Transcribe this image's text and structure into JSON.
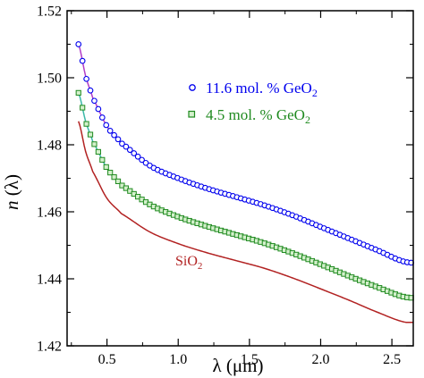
{
  "chart_data": {
    "type": "scatter",
    "xlabel": "λ (μm)",
    "ylabel": "n (λ)",
    "xlim": [
      0.22,
      2.65
    ],
    "ylim": [
      1.42,
      1.52
    ],
    "xticks": [
      0.5,
      1.0,
      1.5,
      2.0,
      2.5
    ],
    "xtick_labels": [
      "0.5",
      "1.0",
      "1.5",
      "2.0",
      "2.5"
    ],
    "yticks": [
      1.42,
      1.44,
      1.46,
      1.48,
      1.5,
      1.52
    ],
    "ytick_labels": [
      "1.42",
      "1.44",
      "1.46",
      "1.48",
      "1.50",
      "1.52"
    ],
    "legend_position": "upper-right",
    "series": [
      {
        "name": "11.6 mol. % GeO2",
        "legend_label": "11.6 mol. % GeO",
        "legend_subscript": "2",
        "marker": "open-circle",
        "color": "#0000ee",
        "fit_color": "#b23cc6",
        "points": [
          [
            0.3,
            1.51
          ],
          [
            0.35,
            1.5005
          ],
          [
            0.4,
            1.494
          ],
          [
            0.5,
            1.4855
          ],
          [
            0.6,
            1.4805
          ],
          [
            0.8,
            1.4738
          ],
          [
            1.0,
            1.47
          ],
          [
            1.2,
            1.467
          ],
          [
            1.4,
            1.4645
          ],
          [
            1.6,
            1.462
          ],
          [
            1.8,
            1.459
          ],
          [
            2.0,
            1.4555
          ],
          [
            2.2,
            1.452
          ],
          [
            2.4,
            1.4485
          ],
          [
            2.6,
            1.445
          ]
        ]
      },
      {
        "name": "4.5 mol. % GeO2",
        "legend_label": "4.5 mol. % GeO",
        "legend_subscript": "2",
        "marker": "open-square",
        "color": "#1f8a1f",
        "fit_color": "#3bb8a8",
        "points": [
          [
            0.3,
            1.4955
          ],
          [
            0.35,
            1.487
          ],
          [
            0.4,
            1.481
          ],
          [
            0.5,
            1.473
          ],
          [
            0.6,
            1.468
          ],
          [
            0.8,
            1.4622
          ],
          [
            1.0,
            1.4585
          ],
          [
            1.2,
            1.4557
          ],
          [
            1.4,
            1.4532
          ],
          [
            1.6,
            1.4507
          ],
          [
            1.8,
            1.4477
          ],
          [
            2.0,
            1.4443
          ],
          [
            2.2,
            1.4408
          ],
          [
            2.4,
            1.4375
          ],
          [
            2.6,
            1.4345
          ]
        ]
      },
      {
        "name": "SiO2",
        "label": "SiO",
        "label_subscript": "2",
        "marker": "none",
        "color": "#b22222",
        "points": [
          [
            0.3,
            1.487
          ],
          [
            0.35,
            1.478
          ],
          [
            0.4,
            1.472
          ],
          [
            0.5,
            1.464
          ],
          [
            0.6,
            1.4595
          ],
          [
            0.8,
            1.454
          ],
          [
            1.0,
            1.4505
          ],
          [
            1.2,
            1.4478
          ],
          [
            1.4,
            1.4455
          ],
          [
            1.6,
            1.4432
          ],
          [
            1.8,
            1.4403
          ],
          [
            2.0,
            1.437
          ],
          [
            2.2,
            1.4336
          ],
          [
            2.4,
            1.43
          ],
          [
            2.6,
            1.427
          ]
        ]
      }
    ]
  }
}
